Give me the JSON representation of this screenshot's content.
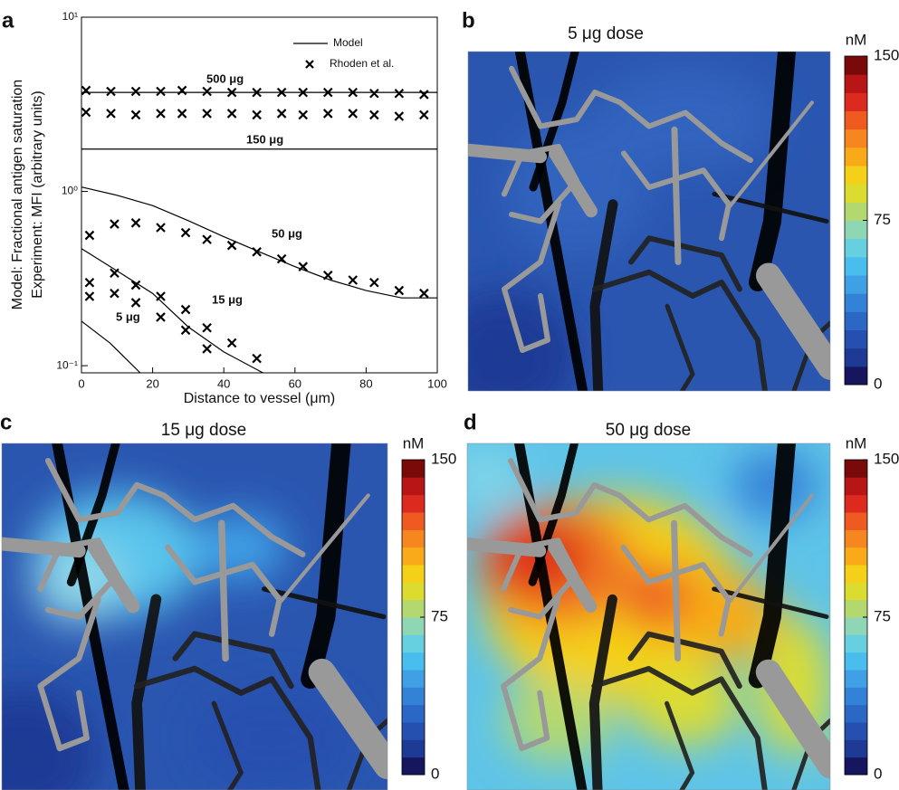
{
  "chart_data": [
    {
      "type": "line",
      "panel": "a",
      "log_y": true,
      "xlabel": "Distance to vessel (μm)",
      "ylabel": [
        "Model: Fractional antigen saturation",
        "Experiment: MFI (arbitrary units)"
      ],
      "xlim": [
        0,
        100
      ],
      "xticks": [
        0,
        20,
        40,
        60,
        80,
        100
      ],
      "ylim": [
        0.091,
        10
      ],
      "yticks": [
        {
          "value": 0.1,
          "label": "10⁻¹"
        },
        {
          "value": 1,
          "label": "10⁰"
        },
        {
          "value": 10,
          "label": "10¹"
        }
      ],
      "legend": [
        "Model",
        "Rhoden et al."
      ],
      "lines": [
        {
          "label": "500 μg",
          "x": [
            0,
            100
          ],
          "values": [
            3.7,
            3.7
          ]
        },
        {
          "label": "150 μg",
          "x": [
            0,
            100
          ],
          "values": [
            1.75,
            1.75
          ]
        },
        {
          "label": "50 μg",
          "x": [
            0,
            10,
            20,
            30,
            40,
            50,
            60,
            70,
            80,
            90,
            100
          ],
          "values": [
            1.06,
            0.95,
            0.83,
            0.68,
            0.55,
            0.45,
            0.37,
            0.31,
            0.27,
            0.245,
            0.245
          ]
        },
        {
          "label": "15 μg",
          "x": [
            0,
            10,
            20,
            30,
            40,
            51
          ],
          "values": [
            0.47,
            0.35,
            0.26,
            0.167,
            0.12,
            0.091
          ]
        },
        {
          "label": "5 μg",
          "x": [
            0,
            8,
            16.5
          ],
          "values": [
            0.18,
            0.135,
            0.091
          ]
        }
      ],
      "points": {
        "x": [
          0,
          7,
          14,
          21,
          27,
          34,
          41,
          48,
          55,
          61,
          68,
          75,
          81,
          88,
          95,
          0,
          7,
          14,
          21,
          27,
          34,
          41,
          48,
          55,
          61,
          68,
          75,
          81,
          88,
          95,
          1,
          8,
          14,
          21,
          28,
          34,
          41,
          48,
          55,
          61,
          68,
          75,
          81,
          88,
          95,
          1,
          1,
          8,
          8,
          14,
          14,
          21,
          21,
          28,
          28,
          34,
          34,
          41,
          48
        ],
        "values": [
          3.8,
          3.75,
          3.75,
          3.75,
          3.8,
          3.75,
          3.7,
          3.7,
          3.7,
          3.7,
          3.7,
          3.7,
          3.65,
          3.65,
          3.6,
          2.85,
          2.8,
          2.75,
          2.8,
          2.8,
          2.8,
          2.8,
          2.75,
          2.8,
          2.75,
          2.8,
          2.8,
          2.75,
          2.7,
          2.75,
          0.56,
          0.65,
          0.66,
          0.62,
          0.58,
          0.53,
          0.49,
          0.45,
          0.41,
          0.37,
          0.33,
          0.31,
          0.3,
          0.27,
          0.26,
          0.3,
          0.25,
          0.34,
          0.26,
          0.29,
          0.23,
          0.25,
          0.19,
          0.21,
          0.16,
          0.165,
          0.125,
          0.135,
          0.11
        ]
      }
    },
    {
      "type": "heatmap",
      "panel": "b",
      "title": "5 μg dose",
      "colorbar_label": "nM",
      "clim": [
        0,
        150
      ],
      "cticks": [
        0,
        75,
        150
      ]
    },
    {
      "type": "heatmap",
      "panel": "c",
      "title": "15 μg dose",
      "colorbar_label": "nM",
      "clim": [
        0,
        150
      ],
      "cticks": [
        0,
        75,
        150
      ]
    },
    {
      "type": "heatmap",
      "panel": "d",
      "title": "50 μg dose",
      "colorbar_label": "nM",
      "clim": [
        0,
        150
      ],
      "cticks": [
        0,
        75,
        150
      ]
    }
  ]
}
